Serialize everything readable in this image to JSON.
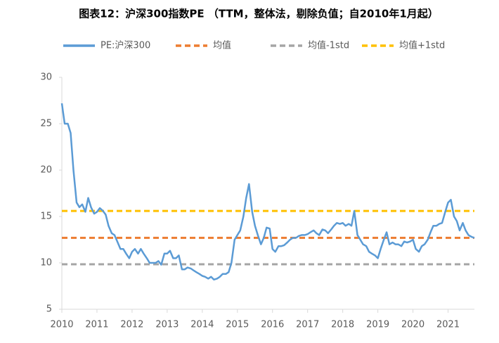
{
  "chart_data": {
    "type": "line",
    "title": "图表12：沪深300指数PE （TTM，整体法，剔除负值；自2010年1月起）",
    "x": [
      2010,
      2010.08,
      2010.17,
      2010.25,
      2010.33,
      2010.42,
      2010.5,
      2010.58,
      2010.67,
      2010.75,
      2010.83,
      2010.92,
      2011,
      2011.08,
      2011.17,
      2011.25,
      2011.33,
      2011.42,
      2011.5,
      2011.58,
      2011.67,
      2011.75,
      2011.83,
      2011.92,
      2012,
      2012.08,
      2012.17,
      2012.25,
      2012.33,
      2012.42,
      2012.5,
      2012.58,
      2012.67,
      2012.75,
      2012.83,
      2012.92,
      2013,
      2013.08,
      2013.17,
      2013.25,
      2013.33,
      2013.42,
      2013.5,
      2013.58,
      2013.67,
      2013.75,
      2013.83,
      2013.92,
      2014,
      2014.08,
      2014.17,
      2014.25,
      2014.33,
      2014.42,
      2014.5,
      2014.58,
      2014.67,
      2014.75,
      2014.83,
      2014.92,
      2015,
      2015.08,
      2015.17,
      2015.25,
      2015.33,
      2015.42,
      2015.5,
      2015.58,
      2015.67,
      2015.75,
      2015.83,
      2015.92,
      2016,
      2016.08,
      2016.17,
      2016.25,
      2016.33,
      2016.42,
      2016.5,
      2016.58,
      2016.67,
      2016.75,
      2016.83,
      2016.92,
      2017,
      2017.08,
      2017.17,
      2017.25,
      2017.33,
      2017.42,
      2017.5,
      2017.58,
      2017.67,
      2017.75,
      2017.83,
      2017.92,
      2018,
      2018.08,
      2018.17,
      2018.25,
      2018.33,
      2018.42,
      2018.5,
      2018.58,
      2018.67,
      2018.75,
      2018.83,
      2018.92,
      2019,
      2019.08,
      2019.17,
      2019.25,
      2019.33,
      2019.42,
      2019.5,
      2019.58,
      2019.67,
      2019.75,
      2019.83,
      2019.92,
      2020,
      2020.08,
      2020.17,
      2020.25,
      2020.33,
      2020.42,
      2020.5,
      2020.58,
      2020.67,
      2020.75,
      2020.83,
      2020.92,
      2021,
      2021.08,
      2021.17,
      2021.25,
      2021.33,
      2021.42,
      2021.5,
      2021.58,
      2021.67,
      2021.75
    ],
    "series": [
      {
        "name": "PE:沪深300",
        "color": "#5b9bd5",
        "values": [
          27.2,
          25,
          25,
          24,
          20,
          16.5,
          16,
          16.3,
          15.5,
          17,
          16,
          15.3,
          15.5,
          15.9,
          15.6,
          15.2,
          14,
          13.2,
          13,
          12.3,
          11.5,
          11.5,
          11,
          10.5,
          11.2,
          11.5,
          11,
          11.5,
          11,
          10.5,
          10,
          10,
          10,
          10.2,
          9.8,
          11,
          11,
          11.3,
          10.5,
          10.5,
          10.8,
          9.3,
          9.3,
          9.5,
          9.4,
          9.2,
          9,
          8.8,
          8.6,
          8.5,
          8.3,
          8.5,
          8.2,
          8.3,
          8.5,
          8.8,
          8.8,
          9,
          10,
          12.5,
          13,
          13.5,
          15,
          17,
          18.5,
          15.5,
          14,
          13,
          12,
          12.7,
          13.8,
          13.7,
          11.5,
          11.2,
          11.8,
          11.8,
          11.9,
          12.2,
          12.5,
          12.7,
          12.7,
          12.9,
          13,
          13,
          13.1,
          13.3,
          13.5,
          13.2,
          13,
          13.6,
          13.5,
          13.2,
          13.6,
          14,
          14.3,
          14.2,
          14.3,
          14,
          14.2,
          14,
          15.6,
          13,
          12.5,
          12,
          11.8,
          11.2,
          11,
          10.8,
          10.5,
          11.5,
          12.5,
          13.3,
          12,
          12.2,
          12,
          12,
          11.8,
          12.3,
          12.2,
          12.3,
          12.5,
          11.5,
          11.2,
          11.8,
          12,
          12.5,
          13.3,
          14,
          14,
          14.2,
          14.3,
          15.5,
          16.5,
          16.8,
          15,
          14.5,
          13.5,
          14.3,
          13.5,
          13,
          12.8,
          12.7
        ]
      }
    ],
    "reference_lines": [
      {
        "name": "均值",
        "color": "#ed7d31",
        "value": 12.7
      },
      {
        "name": "均值-1std",
        "color": "#a5a5a5",
        "value": 9.85
      },
      {
        "name": "均值+1std",
        "color": "#ffc000",
        "value": 15.6
      }
    ],
    "xlim": [
      2010,
      2021.75
    ],
    "xticks": [
      2010,
      2011,
      2012,
      2013,
      2014,
      2015,
      2016,
      2017,
      2018,
      2019,
      2020,
      2021
    ],
    "ylim": [
      5,
      30
    ],
    "yticks": [
      5,
      10,
      15,
      20,
      25,
      30
    ],
    "grid": false
  }
}
